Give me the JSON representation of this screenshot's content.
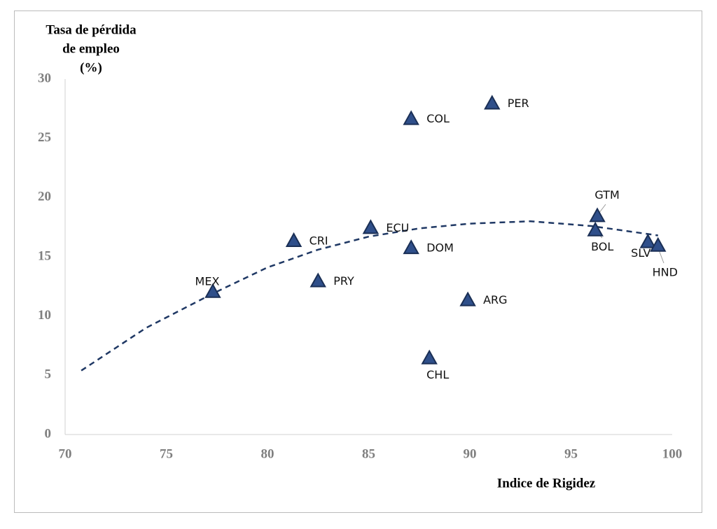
{
  "chart_data": {
    "type": "scatter",
    "y_label": [
      "Tasa de pérdida",
      "de empleo",
      "(%)"
    ],
    "x_label": "Indice de Rigidez",
    "labels": [
      "MEX",
      "CRI",
      "PRY",
      "ECU",
      "COL",
      "DOM",
      "CHL",
      "ARG",
      "PER",
      "GTM",
      "BOL",
      "SLV",
      "HND"
    ],
    "x": [
      77.3,
      81.3,
      82.5,
      85.1,
      87.1,
      87.1,
      88.0,
      89.9,
      91.1,
      96.3,
      96.2,
      98.8,
      99.3
    ],
    "y": [
      12.0,
      16.3,
      12.9,
      17.4,
      26.6,
      15.7,
      6.4,
      11.3,
      27.9,
      18.4,
      17.2,
      16.2,
      15.9
    ],
    "color": "#2f4f8a",
    "trend": {
      "color": "#1f3864",
      "x": [
        70.8,
        74,
        77.3,
        80,
        82.5,
        85,
        87.5,
        90,
        93,
        96,
        99.3
      ],
      "y": [
        5.4,
        9.0,
        11.9,
        14.1,
        15.6,
        16.7,
        17.4,
        17.8,
        18.0,
        17.6,
        16.8
      ]
    },
    "xlim": [
      70,
      100
    ],
    "xticks": [
      70,
      75,
      80,
      85,
      90,
      95,
      100
    ],
    "ylim": [
      0,
      30
    ],
    "yticks": [
      0,
      5,
      10,
      15,
      20,
      25,
      30
    ]
  }
}
